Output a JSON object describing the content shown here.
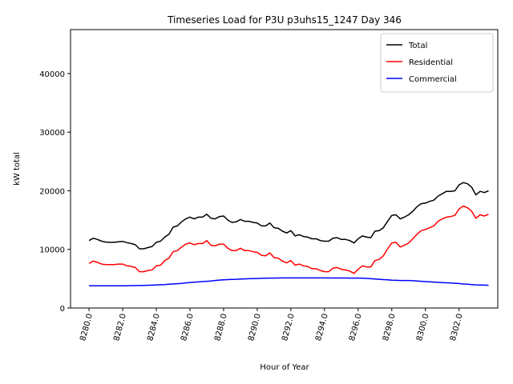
{
  "chart_data": {
    "type": "line",
    "title": "Timeseries Load for P3U p3uhs15_1247  Day 346",
    "xlabel": "Hour of Year",
    "ylabel": "kW total",
    "xlim": [
      8278.9,
      8304.3
    ],
    "ylim": [
      0,
      47500
    ],
    "x_ticks": [
      8280,
      8282,
      8284,
      8286,
      8288,
      8290,
      8292,
      8294,
      8296,
      8298,
      8300,
      8302
    ],
    "x_tick_labels": [
      "8280.0",
      "8282.0",
      "8284.0",
      "8286.0",
      "8288.0",
      "8290.0",
      "8292.0",
      "8294.0",
      "8296.0",
      "8298.0",
      "8300.0",
      "8302.0"
    ],
    "y_ticks": [
      0,
      10000,
      20000,
      30000,
      40000
    ],
    "y_tick_labels": [
      "0",
      "10000",
      "20000",
      "30000",
      "40000"
    ],
    "grid": false,
    "legend_position": "top-right",
    "x_start": 8280,
    "x_step": 0.25,
    "series": [
      {
        "name": "Total",
        "color": "#000000",
        "values": [
          11500,
          11900,
          11700,
          11400,
          11250,
          11200,
          11200,
          11300,
          11350,
          11150,
          11000,
          10800,
          10100,
          10100,
          10300,
          10500,
          11200,
          11400,
          12100,
          12600,
          13800,
          14000,
          14700,
          15200,
          15500,
          15200,
          15500,
          15500,
          16000,
          15300,
          15200,
          15600,
          15700,
          15000,
          14600,
          14700,
          15100,
          14800,
          14800,
          14600,
          14500,
          14000,
          14000,
          14500,
          13700,
          13600,
          13100,
          12800,
          13200,
          12300,
          12500,
          12200,
          12100,
          11800,
          11800,
          11500,
          11400,
          11400,
          11900,
          12000,
          11700,
          11700,
          11500,
          11100,
          11800,
          12300,
          12100,
          12000,
          13100,
          13200,
          13700,
          14800,
          15800,
          15900,
          15200,
          15500,
          15900,
          16500,
          17300,
          17800,
          17900,
          18200,
          18400,
          19100,
          19500,
          19900,
          19900,
          20000,
          21000,
          21400,
          21200,
          20600,
          19300,
          19900,
          19700,
          20000
        ]
      },
      {
        "name": "Residential",
        "color": "#ff0000",
        "values": [
          7600,
          8000,
          7800,
          7500,
          7400,
          7400,
          7400,
          7500,
          7500,
          7200,
          7100,
          6900,
          6200,
          6200,
          6400,
          6500,
          7200,
          7300,
          8100,
          8500,
          9600,
          9800,
          10400,
          10900,
          11100,
          10800,
          11000,
          11000,
          11500,
          10700,
          10600,
          10900,
          10900,
          10200,
          9800,
          9800,
          10200,
          9800,
          9800,
          9600,
          9500,
          9000,
          8900,
          9400,
          8600,
          8500,
          8000,
          7700,
          8100,
          7300,
          7500,
          7200,
          7100,
          6700,
          6700,
          6400,
          6200,
          6200,
          6800,
          6900,
          6600,
          6500,
          6300,
          5900,
          6600,
          7200,
          7000,
          7000,
          8100,
          8300,
          8900,
          10100,
          11100,
          11200,
          10400,
          10700,
          11100,
          11800,
          12600,
          13200,
          13400,
          13700,
          14000,
          14800,
          15200,
          15500,
          15600,
          15800,
          16900,
          17400,
          17100,
          16500,
          15300,
          15900,
          15700,
          16000
        ]
      },
      {
        "name": "Commercial",
        "color": "#0000ff",
        "values": [
          3800,
          3800,
          3800,
          3800,
          3800,
          3800,
          3800,
          3800,
          3800,
          3800,
          3820,
          3820,
          3830,
          3850,
          3870,
          3900,
          3930,
          3970,
          4000,
          4050,
          4100,
          4150,
          4200,
          4280,
          4350,
          4400,
          4450,
          4500,
          4560,
          4620,
          4700,
          4760,
          4800,
          4850,
          4870,
          4900,
          4950,
          4970,
          5000,
          5020,
          5040,
          5060,
          5080,
          5100,
          5110,
          5120,
          5130,
          5130,
          5130,
          5130,
          5130,
          5130,
          5130,
          5130,
          5130,
          5130,
          5130,
          5130,
          5120,
          5120,
          5120,
          5120,
          5110,
          5110,
          5100,
          5080,
          5050,
          5000,
          4950,
          4900,
          4850,
          4800,
          4750,
          4720,
          4700,
          4700,
          4690,
          4650,
          4600,
          4560,
          4500,
          4460,
          4420,
          4380,
          4340,
          4300,
          4260,
          4220,
          4170,
          4100,
          4050,
          4000,
          3950,
          3920,
          3900,
          3880
        ]
      }
    ]
  }
}
